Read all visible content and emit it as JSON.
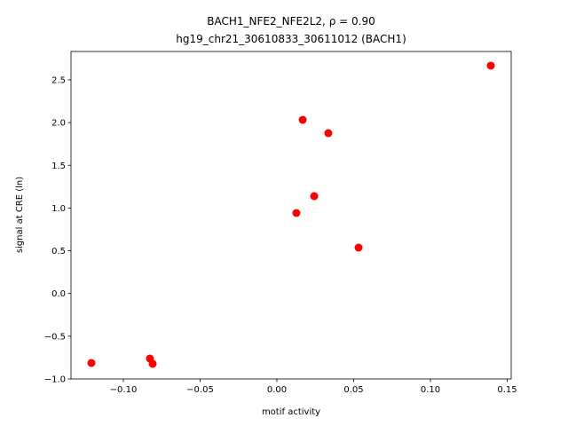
{
  "chart_data": {
    "type": "scatter",
    "title": "BACH1_NFE2_NFE2L2, ρ = 0.90",
    "subtitle": "hg19_chr21_30610833_30611012 (BACH1)",
    "x_label": "motif activity",
    "y_label": "signal at CRE (ln)",
    "color": "#ff0000",
    "x": [
      -0.1208,
      -0.0827,
      -0.0809,
      0.0127,
      0.0168,
      0.0243,
      0.0335,
      0.0532,
      0.1393
    ],
    "values": [
      -0.813,
      -0.761,
      -0.823,
      0.942,
      2.032,
      1.139,
      1.876,
      0.537,
      2.666
    ],
    "xlim": [
      -0.1341,
      0.1526
    ],
    "ylim": [
      -1.0,
      2.832
    ],
    "xticks": [
      {
        "value": -0.1,
        "label": "−0.10"
      },
      {
        "value": -0.05,
        "label": "−0.05"
      },
      {
        "value": 0,
        "label": "0.00"
      },
      0.05,
      {
        "value": 0.1,
        "label": "0.10"
      },
      0.15
    ],
    "yticks": [
      {
        "value": -1,
        "label": "−1.0"
      },
      {
        "value": -0.5,
        "label": "−0.5"
      },
      {
        "value": 0,
        "label": "0.0"
      },
      0.5,
      {
        "value": 1,
        "label": "1.0"
      },
      1.5,
      {
        "value": 2,
        "label": "2.0"
      },
      2.5
    ]
  }
}
